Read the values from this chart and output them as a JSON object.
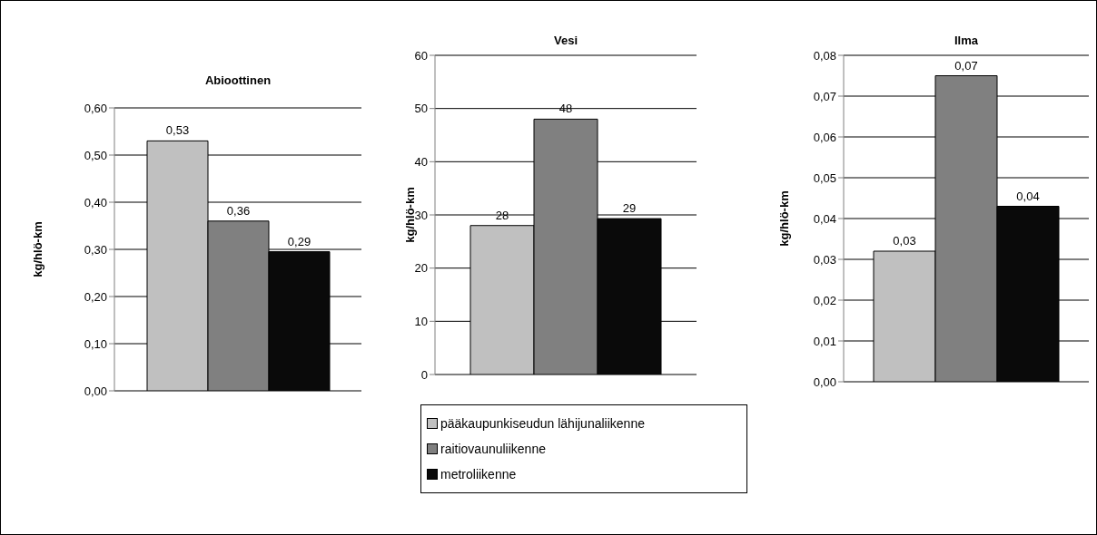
{
  "chart_data": [
    {
      "type": "bar",
      "title": "Abioottinen",
      "ylabel": "kg/hlö-km",
      "categories": [
        null
      ],
      "grid": "y",
      "ylim": [
        0,
        0.6
      ],
      "yticks": [
        {
          "value": 0,
          "label": "0,00"
        },
        {
          "value": 0.1,
          "label": "0,10"
        },
        {
          "value": 0.2,
          "label": "0,20"
        },
        {
          "value": 0.3,
          "label": "0,30"
        },
        {
          "value": 0.4,
          "label": "0,40"
        },
        {
          "value": 0.5,
          "label": "0,50"
        },
        {
          "value": 0.6,
          "label": "0,60"
        }
      ],
      "series": [
        {
          "color": "#c0c0c0",
          "values": [
            0.53
          ],
          "value_labels": [
            "0,53"
          ]
        },
        {
          "color": "#808080",
          "values": [
            0.36
          ],
          "value_labels": [
            "0,36"
          ]
        },
        {
          "color": "#0a0a0a",
          "values": [
            0.295
          ],
          "value_labels": [
            "0,29"
          ]
        }
      ]
    },
    {
      "type": "bar",
      "title": "Vesi",
      "ylabel": "kg/hlö-km",
      "categories": [
        null
      ],
      "grid": "y",
      "legend": "bottom",
      "ylim": [
        0,
        60
      ],
      "yticks": [
        0,
        10,
        20,
        30,
        40,
        50,
        60
      ],
      "series": [
        {
          "name": "pääkaupunkiseudun lähijunaliikenne",
          "color": "#c0c0c0",
          "values": [
            28
          ],
          "value_labels": [
            "28"
          ]
        },
        {
          "name": "raitiovaunuliikenne",
          "color": "#808080",
          "values": [
            48
          ],
          "value_labels": [
            "48"
          ]
        },
        {
          "name": "metroliikenne",
          "color": "#0a0a0a",
          "values": [
            29.3
          ],
          "value_labels": [
            "29"
          ]
        }
      ]
    },
    {
      "type": "bar",
      "title": "Ilma",
      "ylabel": "kg/hlö-km",
      "categories": [
        null
      ],
      "grid": "y",
      "ylim": [
        0,
        0.08
      ],
      "yticks": [
        {
          "value": 0,
          "label": "0,00"
        },
        {
          "value": 0.01,
          "label": "0,01"
        },
        {
          "value": 0.02,
          "label": "0,02"
        },
        {
          "value": 0.03,
          "label": "0,03"
        },
        {
          "value": 0.04,
          "label": "0,04"
        },
        {
          "value": 0.05,
          "label": "0,05"
        },
        {
          "value": 0.06,
          "label": "0,06"
        },
        {
          "value": 0.07,
          "label": "0,07"
        },
        {
          "value": 0.08,
          "label": "0,08"
        }
      ],
      "series": [
        {
          "color": "#c0c0c0",
          "values": [
            0.032
          ],
          "value_labels": [
            "0,03"
          ]
        },
        {
          "color": "#808080",
          "values": [
            0.075
          ],
          "value_labels": [
            "0,07"
          ]
        },
        {
          "color": "#0a0a0a",
          "values": [
            0.043
          ],
          "value_labels": [
            "0,04"
          ]
        }
      ]
    }
  ]
}
